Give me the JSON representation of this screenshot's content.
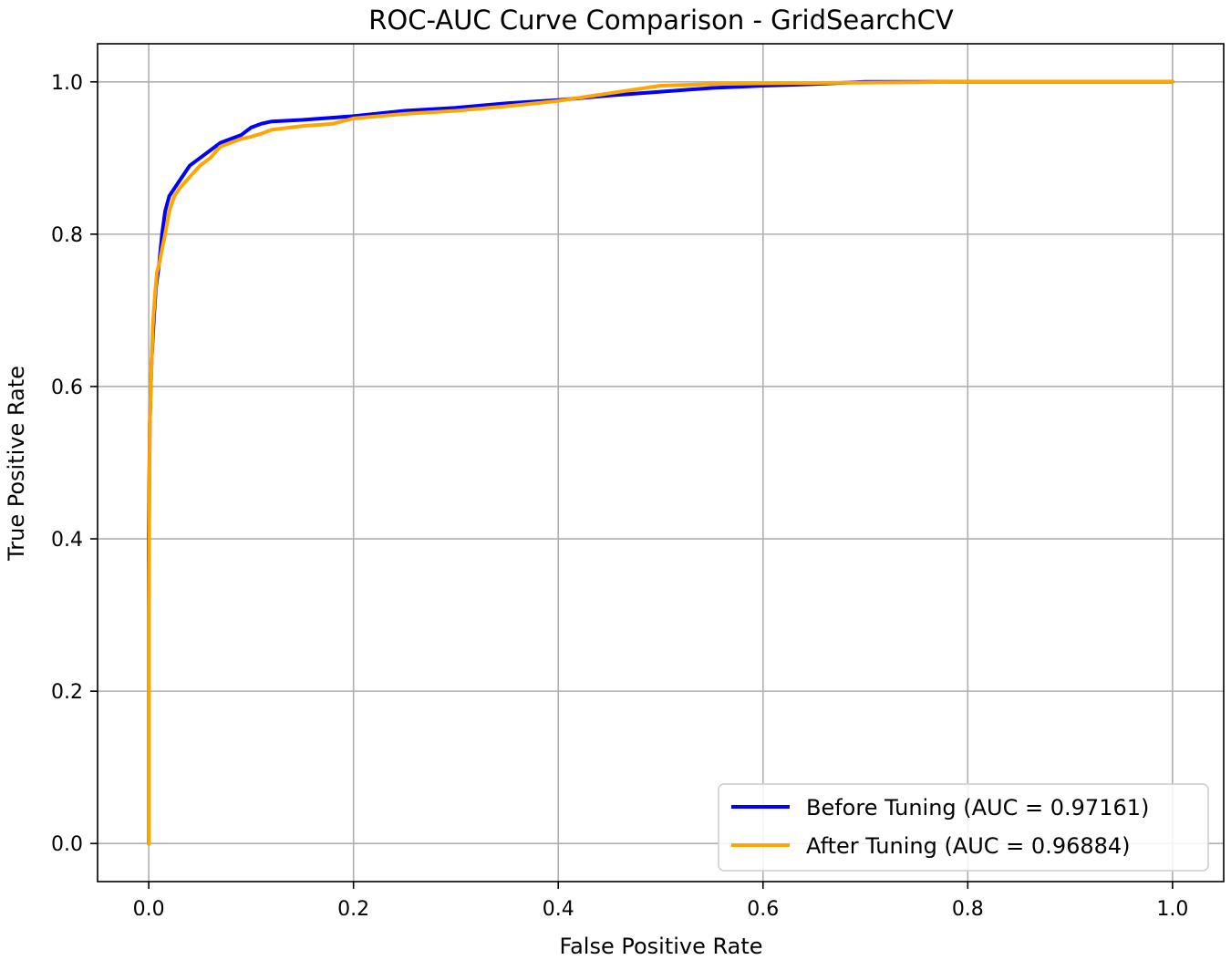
{
  "chart_data": {
    "type": "line",
    "title": "ROC-AUC Curve Comparison - GridSearchCV",
    "xlabel": "False Positive Rate",
    "ylabel": "True Positive Rate",
    "xlim": [
      -0.05,
      1.05
    ],
    "ylim": [
      -0.05,
      1.05
    ],
    "xticks": [
      0.0,
      0.2,
      0.4,
      0.6,
      0.8,
      1.0
    ],
    "yticks": [
      0.0,
      0.2,
      0.4,
      0.6,
      0.8,
      1.0
    ],
    "xtick_labels": [
      "0.0",
      "0.2",
      "0.4",
      "0.6",
      "0.8",
      "1.0"
    ],
    "ytick_labels": [
      "0.0",
      "0.2",
      "0.4",
      "0.6",
      "0.8",
      "1.0"
    ],
    "grid": true,
    "legend_position": "bottom-right",
    "series": [
      {
        "name": "Before Tuning (AUC = 0.97161)",
        "color": "#0000ff",
        "x": [
          0.0,
          0.0,
          0.0,
          0.001,
          0.002,
          0.003,
          0.005,
          0.007,
          0.01,
          0.013,
          0.016,
          0.02,
          0.025,
          0.03,
          0.04,
          0.05,
          0.06,
          0.07,
          0.08,
          0.09,
          0.1,
          0.11,
          0.12,
          0.15,
          0.2,
          0.25,
          0.3,
          0.35,
          0.4,
          0.45,
          0.5,
          0.55,
          0.6,
          0.65,
          0.7,
          0.8,
          0.9,
          1.0
        ],
        "y": [
          0.0,
          0.2,
          0.4,
          0.55,
          0.6,
          0.64,
          0.69,
          0.73,
          0.76,
          0.8,
          0.83,
          0.85,
          0.86,
          0.87,
          0.89,
          0.9,
          0.91,
          0.92,
          0.925,
          0.93,
          0.94,
          0.945,
          0.948,
          0.95,
          0.955,
          0.962,
          0.966,
          0.972,
          0.976,
          0.982,
          0.987,
          0.992,
          0.995,
          0.997,
          1.0,
          1.0,
          1.0,
          1.0
        ]
      },
      {
        "name": "After Tuning (AUC = 0.96884)",
        "color": "#ffa500",
        "x": [
          0.0,
          0.0,
          0.001,
          0.002,
          0.004,
          0.006,
          0.008,
          0.01,
          0.013,
          0.016,
          0.02,
          0.025,
          0.03,
          0.04,
          0.05,
          0.06,
          0.07,
          0.08,
          0.09,
          0.1,
          0.11,
          0.12,
          0.15,
          0.18,
          0.2,
          0.25,
          0.3,
          0.35,
          0.4,
          0.45,
          0.5,
          0.55,
          0.6,
          0.7,
          0.8,
          0.9,
          1.0
        ],
        "y": [
          0.0,
          0.3,
          0.55,
          0.6,
          0.68,
          0.72,
          0.75,
          0.76,
          0.78,
          0.8,
          0.83,
          0.85,
          0.86,
          0.875,
          0.89,
          0.9,
          0.915,
          0.92,
          0.925,
          0.928,
          0.932,
          0.937,
          0.942,
          0.945,
          0.952,
          0.958,
          0.962,
          0.968,
          0.975,
          0.985,
          0.995,
          0.997,
          0.998,
          0.999,
          1.0,
          1.0,
          1.0
        ]
      }
    ]
  }
}
